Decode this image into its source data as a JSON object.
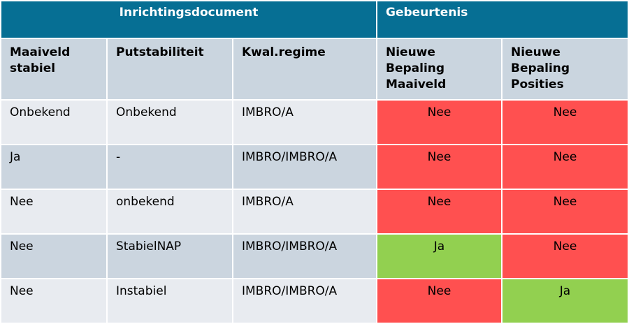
{
  "header": {
    "group1": "Inrichtingsdocument",
    "group2": "Gebeurtenis"
  },
  "columns": [
    "Maaiveld stabiel",
    "Putstabiliteit",
    "Kwal.regime",
    "Nieuwe Bepaling Maaiveld",
    "Nieuwe Bepaling Posities"
  ],
  "colors": {
    "header": "#066f94",
    "no": "#ff5050",
    "yes": "#92d050"
  },
  "rows": [
    [
      "Onbekend",
      "Onbekend",
      "IMBRO/A",
      "Nee",
      "Nee"
    ],
    [
      "Ja",
      "-",
      "IMBRO/IMBRO/A",
      "Nee",
      "Nee"
    ],
    [
      "Nee",
      "onbekend",
      "IMBRO/A",
      "Nee",
      "Nee"
    ],
    [
      "Nee",
      "StabielNAP",
      "IMBRO/IMBRO/A",
      "Ja",
      "Nee"
    ],
    [
      "Nee",
      "Instabiel",
      "IMBRO/IMBRO/A",
      "Nee",
      "Ja"
    ]
  ]
}
